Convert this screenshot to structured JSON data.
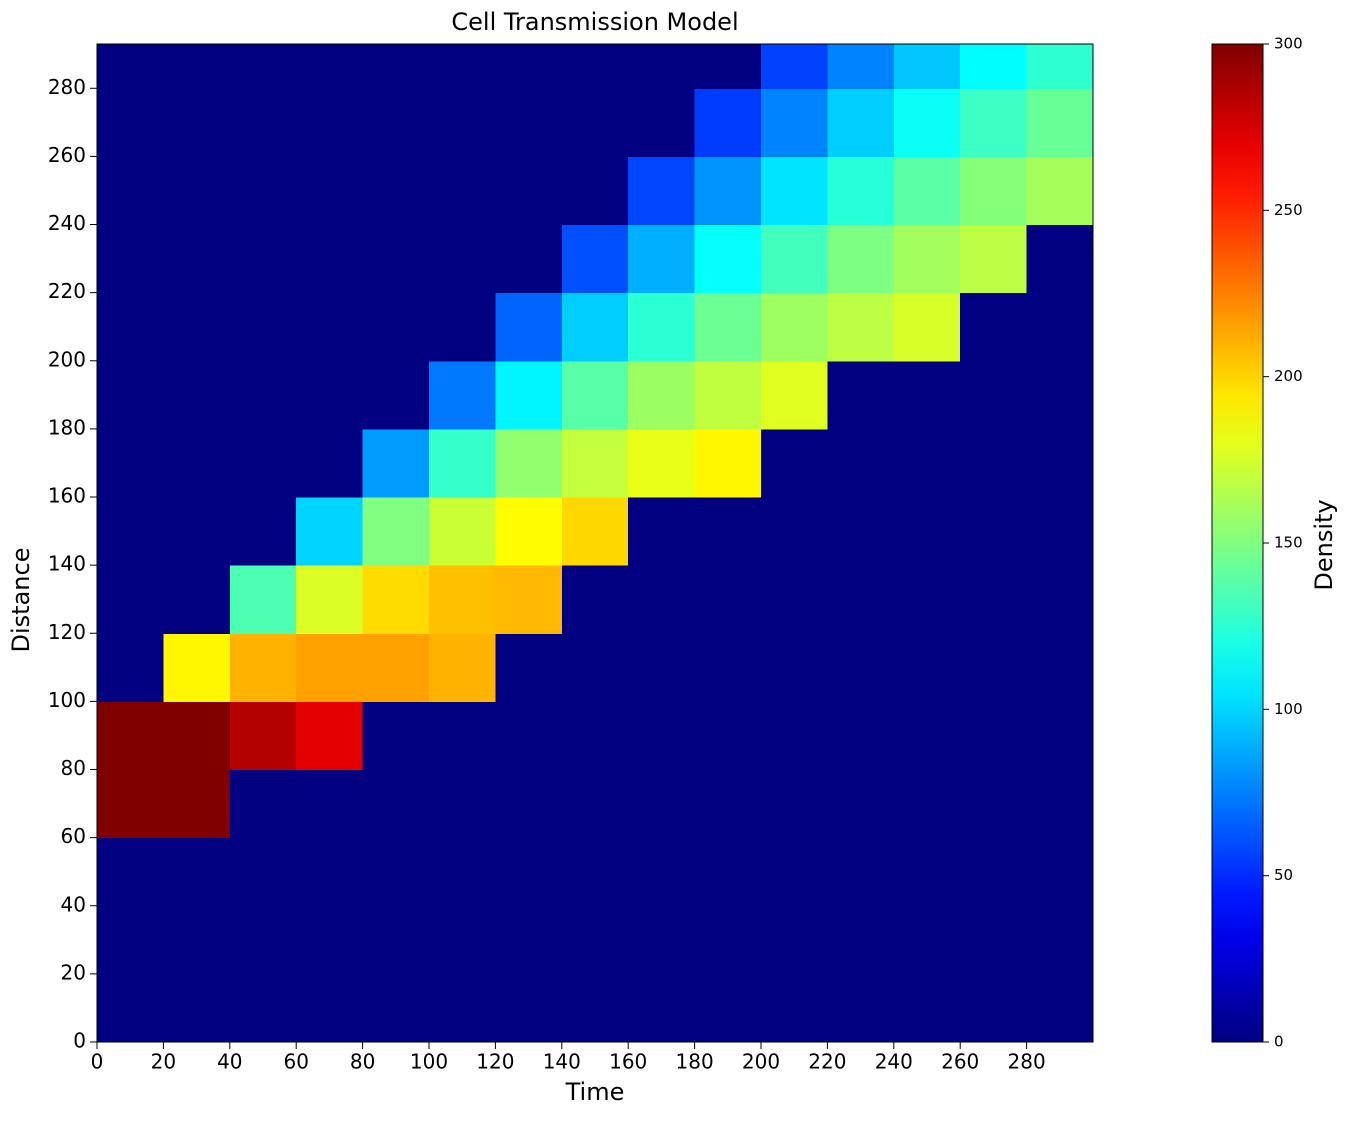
{
  "chart_data": {
    "type": "heatmap",
    "title": "Cell Transmission Model",
    "x_label": "Time",
    "y_label": "Distance",
    "colorbar_label": "Density",
    "colormap": "jet",
    "clim": [
      0,
      300
    ],
    "cticks": [
      0,
      50,
      100,
      150,
      200,
      250,
      300
    ],
    "xlim": [
      0,
      300
    ],
    "ylim": [
      0,
      293
    ],
    "xticks": [
      0,
      20,
      40,
      60,
      80,
      100,
      120,
      140,
      160,
      180,
      200,
      220,
      240,
      260,
      280
    ],
    "yticks": [
      0,
      20,
      40,
      60,
      80,
      100,
      120,
      140,
      160,
      180,
      200,
      220,
      240,
      260,
      280
    ],
    "x_edges": [
      0,
      20,
      40,
      60,
      80,
      100,
      120,
      140,
      160,
      180,
      200,
      220,
      240,
      260,
      280,
      300
    ],
    "y_edges": [
      0,
      20,
      40,
      60,
      80,
      100,
      120,
      140,
      160,
      180,
      200,
      220,
      240,
      260,
      280,
      293
    ],
    "z": [
      [
        0,
        0,
        0,
        0,
        0,
        0,
        0,
        0,
        0,
        0,
        0,
        0,
        0,
        0,
        0
      ],
      [
        0,
        0,
        0,
        0,
        0,
        0,
        0,
        0,
        0,
        0,
        0,
        0,
        0,
        0,
        0
      ],
      [
        0,
        0,
        0,
        0,
        0,
        0,
        0,
        0,
        0,
        0,
        0,
        0,
        0,
        0,
        0
      ],
      [
        300,
        300,
        0,
        0,
        0,
        0,
        0,
        0,
        0,
        0,
        0,
        0,
        0,
        0,
        0
      ],
      [
        300,
        300,
        285,
        270,
        0,
        0,
        0,
        0,
        0,
        0,
        0,
        0,
        0,
        0,
        0
      ],
      [
        0,
        190,
        210,
        215,
        215,
        210,
        0,
        0,
        0,
        0,
        0,
        0,
        0,
        0,
        0
      ],
      [
        0,
        0,
        135,
        177,
        198,
        206,
        208,
        0,
        0,
        0,
        0,
        0,
        0,
        0,
        0
      ],
      [
        0,
        0,
        0,
        100,
        150,
        172,
        188,
        199,
        0,
        0,
        0,
        0,
        0,
        0,
        0
      ],
      [
        0,
        0,
        0,
        0,
        83,
        128,
        155,
        170,
        181,
        190,
        0,
        0,
        0,
        0,
        0
      ],
      [
        0,
        0,
        0,
        0,
        0,
        73,
        110,
        138,
        158,
        169,
        178,
        0,
        0,
        0,
        0
      ],
      [
        0,
        0,
        0,
        0,
        0,
        0,
        67,
        98,
        125,
        144,
        159,
        168,
        176,
        0,
        0
      ],
      [
        0,
        0,
        0,
        0,
        0,
        0,
        0,
        61,
        89,
        114,
        132,
        149,
        160,
        168,
        0
      ],
      [
        0,
        0,
        0,
        0,
        0,
        0,
        0,
        0,
        58,
        81,
        105,
        124,
        139,
        152,
        161
      ],
      [
        0,
        0,
        0,
        0,
        0,
        0,
        0,
        0,
        0,
        55,
        76,
        98,
        115,
        130,
        143
      ],
      [
        0,
        0,
        0,
        0,
        0,
        0,
        0,
        0,
        0,
        0,
        57,
        76,
        96,
        112,
        126
      ]
    ]
  }
}
